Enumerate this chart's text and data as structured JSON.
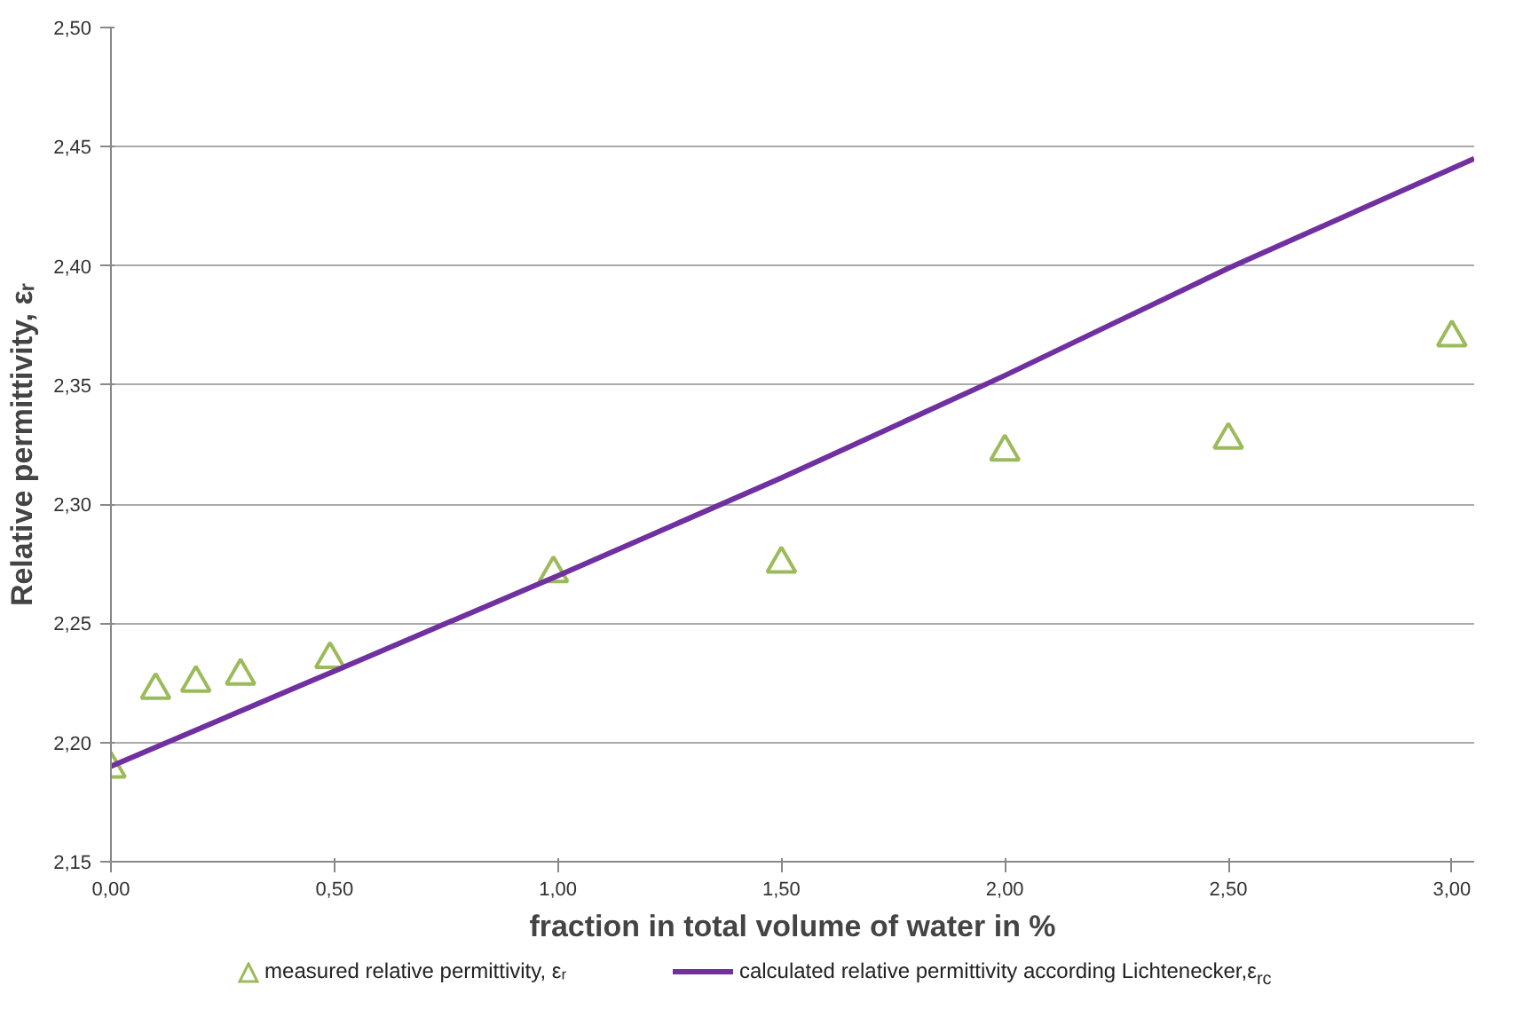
{
  "chart_data": {
    "type": "scatter",
    "xlabel": "fraction in total volume of water in %",
    "ylabel": "Relative permittivity, εᵣ",
    "xlim": [
      0,
      3.05
    ],
    "xticks": [
      {
        "value": 0,
        "label": "0,00"
      },
      {
        "value": 0.5,
        "label": "0,50"
      },
      {
        "value": 1,
        "label": "1,00"
      },
      {
        "value": 1.5,
        "label": "1,50"
      },
      {
        "value": 2,
        "label": "2,00"
      },
      {
        "value": 2.5,
        "label": "2,50"
      },
      {
        "value": 3,
        "label": "3,00"
      }
    ],
    "ylim": [
      2.15,
      2.5
    ],
    "yticks": [
      {
        "value": 2.15,
        "label": "2,15"
      },
      {
        "value": 2.2,
        "label": "2,20"
      },
      {
        "value": 2.25,
        "label": "2,25"
      },
      {
        "value": 2.3,
        "label": "2,30"
      },
      {
        "value": 2.35,
        "label": "2,35"
      },
      {
        "value": 2.4,
        "label": "2,40"
      },
      {
        "value": 2.45,
        "label": "2,45"
      },
      {
        "value": 2.5,
        "label": "2,50"
      }
    ],
    "grid": "y",
    "legend": "bottom",
    "series": [
      {
        "name": "measured relative permittivity, εᵣ",
        "marker": "triangle",
        "color": "#9bbb59",
        "x": [
          0,
          0.1,
          0.19,
          0.29,
          0.49,
          0.99,
          1.5,
          2.0,
          2.5,
          3.0
        ],
        "values": [
          2.189,
          2.222,
          2.225,
          2.228,
          2.235,
          2.271,
          2.275,
          2.322,
          2.327,
          2.37
        ]
      },
      {
        "name": "calculated relative permittivity according Lichtenecker,ε$_{rc}$",
        "type": "line",
        "color": "#7030a0",
        "line_style": "solid",
        "x": [
          0,
          0.5,
          1,
          1.5,
          2,
          2.5,
          3.05
        ],
        "values": [
          2.19,
          2.23,
          2.27,
          2.311,
          2.354,
          2.399,
          2.445
        ]
      }
    ]
  }
}
